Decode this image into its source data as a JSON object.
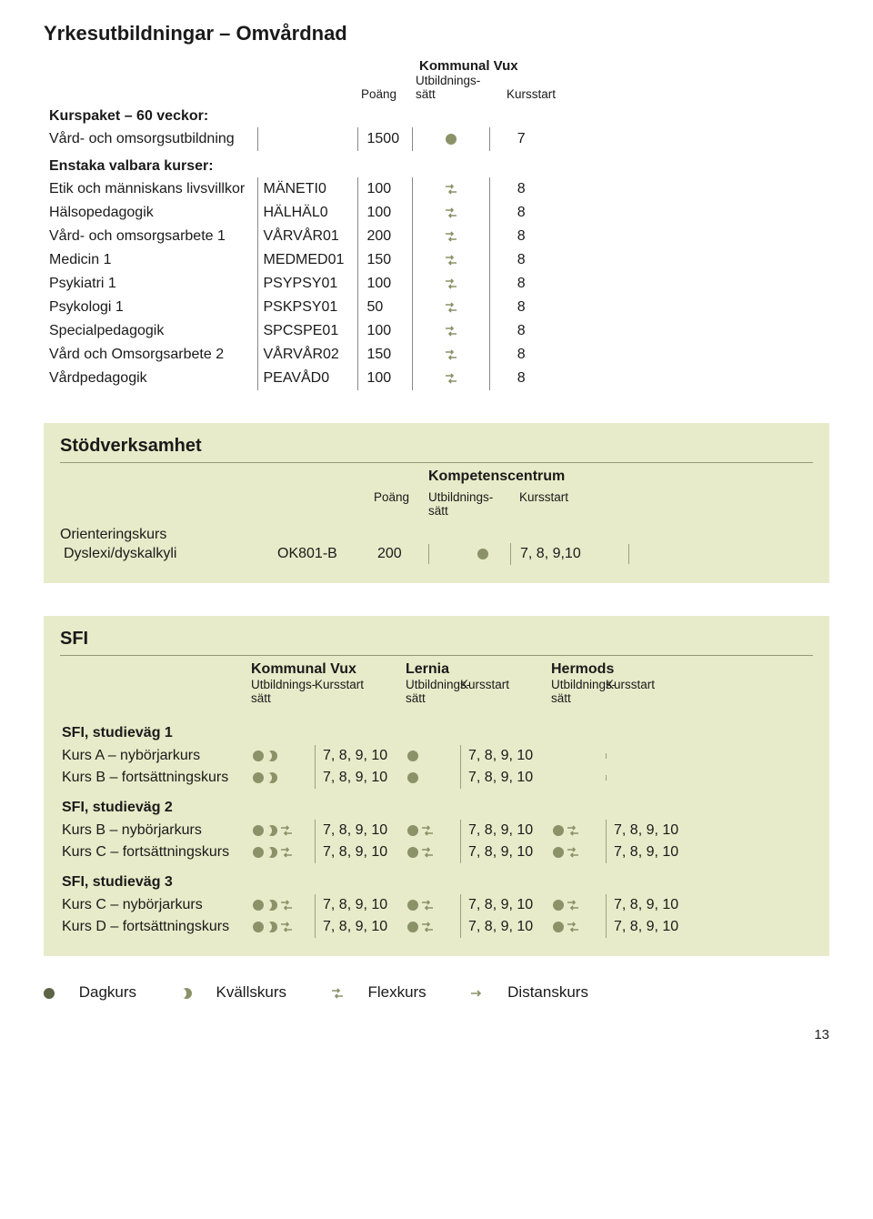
{
  "section1": {
    "title": "Yrkesutbildningar – Omvårdnad",
    "provider": "Kommunal Vux",
    "col_poang": "Poäng",
    "col_utb": "Utbildnings-\nsätt",
    "col_start": "Kursstart",
    "sub1": "Kurspaket – 60 veckor:",
    "row_pkg": {
      "name": "Vård- och omsorgsutbildning",
      "pts": "1500",
      "start": "7"
    },
    "sub2": "Enstaka valbara kurser:",
    "rows": [
      {
        "name": "Etik och människans livsvillkor",
        "code": "MÄNETI0",
        "pts": "100",
        "start": "8"
      },
      {
        "name": "Hälsopedagogik",
        "code": "HÄLHÄL0",
        "pts": "100",
        "start": "8"
      },
      {
        "name": "Vård- och omsorgsarbete 1",
        "code": "VÅRVÅR01",
        "pts": "200",
        "start": "8"
      },
      {
        "name": "Medicin 1",
        "code": "MEDMED01",
        "pts": "150",
        "start": "8"
      },
      {
        "name": "Psykiatri 1",
        "code": "PSYPSY01",
        "pts": "100",
        "start": "8"
      },
      {
        "name": "Psykologi 1",
        "code": "PSKPSY01",
        "pts": "50",
        "start": "8"
      },
      {
        "name": "Specialpedagogik",
        "code": "SPCSPE01",
        "pts": "100",
        "start": "8"
      },
      {
        "name": "Vård och Omsorgsarbete 2",
        "code": "VÅRVÅR02",
        "pts": "150",
        "start": "8"
      },
      {
        "name": "Vårdpedagogik",
        "code": "PEAVÅD0",
        "pts": "100",
        "start": "8"
      }
    ]
  },
  "section2": {
    "title": "Stödverksamhet",
    "provider": "Kompetenscentrum",
    "col_poang": "Poäng",
    "col_utb": "Utbildnings-\nsätt",
    "col_start": "Kursstart",
    "row1_a": "Orienteringskurs",
    "row1_b": "Dyslexi/dyskalkyli",
    "code": "OK801-B",
    "pts": "200",
    "start": "7, 8, 9,10"
  },
  "section3": {
    "title": "SFI",
    "providers": [
      "Kommunal Vux",
      "Lernia",
      "Hermods"
    ],
    "col_utb": "Utbildnings-\nsätt",
    "col_start": "Kursstart",
    "groups": [
      {
        "title": "SFI, studieväg 1",
        "rows": [
          {
            "name": "Kurs A – nybörjarkurs",
            "c1": [
              "dot",
              "moon"
            ],
            "s1": "7, 8, 9, 10",
            "c2": [
              "dot"
            ],
            "s2": "7, 8, 9, 10",
            "c3": [],
            "s3": ""
          },
          {
            "name": "Kurs B – fortsättningskurs",
            "c1": [
              "dot",
              "moon"
            ],
            "s1": "7, 8, 9, 10",
            "c2": [
              "dot"
            ],
            "s2": "7, 8, 9, 10",
            "c3": [],
            "s3": ""
          }
        ]
      },
      {
        "title": "SFI, studieväg 2",
        "rows": [
          {
            "name": "Kurs B – nybörjarkurs",
            "c1": [
              "dot",
              "moon",
              "flex"
            ],
            "s1": "7, 8, 9, 10",
            "c2": [
              "dot",
              "flex"
            ],
            "s2": "7, 8, 9, 10",
            "c3": [
              "dot",
              "flex"
            ],
            "s3": "7, 8, 9, 10"
          },
          {
            "name": "Kurs C – fortsättningskurs",
            "c1": [
              "dot",
              "moon",
              "flex"
            ],
            "s1": "7, 8, 9, 10",
            "c2": [
              "dot",
              "flex"
            ],
            "s2": "7, 8, 9, 10",
            "c3": [
              "dot",
              "flex"
            ],
            "s3": "7, 8, 9, 10"
          }
        ]
      },
      {
        "title": "SFI, studieväg 3",
        "rows": [
          {
            "name": "Kurs C – nybörjarkurs",
            "c1": [
              "dot",
              "moon",
              "flex"
            ],
            "s1": "7, 8, 9, 10",
            "c2": [
              "dot",
              "flex"
            ],
            "s2": "7, 8, 9, 10",
            "c3": [
              "dot",
              "flex"
            ],
            "s3": "7, 8, 9, 10"
          },
          {
            "name": "Kurs D – fortsättningskurs",
            "c1": [
              "dot",
              "moon",
              "flex"
            ],
            "s1": "7, 8, 9, 10",
            "c2": [
              "dot",
              "flex"
            ],
            "s2": "7, 8, 9, 10",
            "c3": [
              "dot",
              "flex"
            ],
            "s3": "7, 8, 9, 10"
          }
        ]
      }
    ]
  },
  "legend": {
    "dag": "Dagkurs",
    "kvall": "Kvällskurs",
    "flex": "Flexkurs",
    "dist": "Distanskurs"
  },
  "pagenum": "13",
  "colors": {
    "panel_bg": "#e8ebc9",
    "icon": "#8b9268",
    "icon_dark": "#5d6546",
    "rule": "#95997a"
  }
}
